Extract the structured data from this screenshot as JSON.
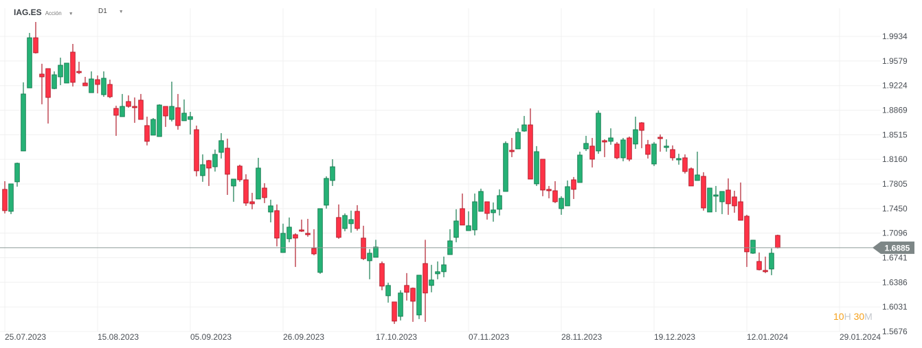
{
  "header": {
    "symbol": "IAG.ES",
    "instrument_type": "Acción",
    "timeframe": "D1",
    "caret_icon": "chevron-down-icon"
  },
  "timer": {
    "hours": "10",
    "hours_unit": "H",
    "minutes": "30",
    "minutes_unit": "M"
  },
  "colors": {
    "up": "#26b276",
    "up_border": "#137a4e",
    "down": "#ff3347",
    "down_border": "#b01c2a",
    "price_line": "#8c9a96",
    "price_tag": "#7d8686",
    "timer_digits": "#f5a11c"
  },
  "chart_data": {
    "type": "candlestick",
    "symbol": "IAG.ES",
    "timeframe": "D1",
    "current_price": "1.6885",
    "current_price_value": 1.6885,
    "ylim": [
      1.5676,
      1.9934
    ],
    "y_ticks": [
      "1.9934",
      "1.9579",
      "1.9224",
      "1.8869",
      "1.8515",
      "1.8160",
      "1.7805",
      "1.7450",
      "1.7096",
      "1.6741",
      "1.6386",
      "1.6031",
      "1.5676"
    ],
    "x_ticks": [
      {
        "label": "25.07.2023",
        "index": 0
      },
      {
        "label": "15.08.2023",
        "index": 15
      },
      {
        "label": "05.09.2023",
        "index": 30
      },
      {
        "label": "26.09.2023",
        "index": 45
      },
      {
        "label": "17.10.2023",
        "index": 60
      },
      {
        "label": "07.11.2023",
        "index": 75
      },
      {
        "label": "28.11.2023",
        "index": 90
      },
      {
        "label": "19.12.2023",
        "index": 105
      },
      {
        "label": "12.01.2024",
        "index": 120
      },
      {
        "label": "29.01.2024",
        "index": 135
      }
    ],
    "grid": true,
    "ohlc_columns": [
      "open",
      "high",
      "low",
      "close"
    ],
    "candles": [
      [
        1.7727,
        1.7845,
        1.738,
        1.742
      ],
      [
        1.741,
        1.7806,
        1.737,
        1.7806
      ],
      [
        1.7836,
        1.8113,
        1.7766,
        1.8103
      ],
      [
        1.8281,
        1.9271,
        1.8281,
        1.9103
      ],
      [
        1.9191,
        1.9984,
        1.9191,
        1.9914
      ],
      [
        1.9914,
        2.0142,
        1.9687,
        1.9697
      ],
      [
        1.939,
        1.9539,
        1.8954,
        1.935
      ],
      [
        1.9469,
        1.9469,
        1.8677,
        1.9053
      ],
      [
        1.9181,
        1.9429,
        1.9172,
        1.938
      ],
      [
        1.935,
        1.9627,
        1.9231,
        1.9518
      ],
      [
        1.9261,
        1.9548,
        1.9261,
        1.9548
      ],
      [
        1.9707,
        1.9825,
        1.9211,
        1.9271
      ],
      [
        1.9429,
        1.9568,
        1.939,
        1.941
      ],
      [
        1.9261,
        1.935,
        1.9221,
        1.9221
      ],
      [
        1.9122,
        1.9429,
        1.9122,
        1.932
      ],
      [
        1.931,
        1.937,
        1.9112,
        1.9241
      ],
      [
        1.9093,
        1.9429,
        1.9063,
        1.933
      ],
      [
        1.9241,
        1.931,
        1.9043,
        1.9063
      ],
      [
        1.8895,
        1.8934,
        1.8499,
        1.8796
      ],
      [
        1.8776,
        1.9103,
        1.8776,
        1.8924
      ],
      [
        1.8994,
        1.9083,
        1.8905,
        1.8924
      ],
      [
        1.8924,
        1.9053,
        1.8687,
        1.8905
      ],
      [
        1.9014,
        1.9103,
        1.8736,
        1.8736
      ],
      [
        1.8647,
        1.8776,
        1.8361,
        1.842
      ],
      [
        1.8509,
        1.8756,
        1.8509,
        1.8736
      ],
      [
        1.8489,
        1.8954,
        1.8489,
        1.8944
      ],
      [
        1.8924,
        1.8924,
        1.8628,
        1.8786
      ],
      [
        1.8736,
        1.9281,
        1.8707,
        1.8924
      ],
      [
        1.8905,
        1.9103,
        1.8588,
        1.8647
      ],
      [
        1.8717,
        1.9024,
        1.8717,
        1.8826
      ],
      [
        1.8736,
        1.8845,
        1.8519,
        1.8776
      ],
      [
        1.8588,
        1.8647,
        1.7915,
        1.7994
      ],
      [
        1.7925,
        1.8232,
        1.7836,
        1.8083
      ],
      [
        1.8142,
        1.8152,
        1.7776,
        1.8034
      ],
      [
        1.8053,
        1.8301,
        1.7984,
        1.8232
      ],
      [
        1.8261,
        1.8538,
        1.8172,
        1.843
      ],
      [
        1.8321,
        1.8459,
        1.7647,
        1.7945
      ],
      [
        1.7776,
        1.7875,
        1.7548,
        1.7875
      ],
      [
        1.8063,
        1.8083,
        1.7836,
        1.7865
      ],
      [
        1.7865,
        1.7945,
        1.7489,
        1.7529
      ],
      [
        1.7548,
        1.7677,
        1.744,
        1.7519
      ],
      [
        1.7588,
        1.8182,
        1.7588,
        1.8034
      ],
      [
        1.7746,
        1.7816,
        1.7529,
        1.7608
      ],
      [
        1.74,
        1.7578,
        1.7251,
        1.7489
      ],
      [
        1.742,
        1.7509,
        1.6905,
        1.7024
      ],
      [
        1.6816,
        1.7232,
        1.6816,
        1.7093
      ],
      [
        1.7014,
        1.7321,
        1.6964,
        1.7182
      ],
      [
        1.7073,
        1.7093,
        1.6608,
        1.7024
      ],
      [
        1.7142,
        1.7291,
        1.7113,
        1.7123
      ],
      [
        1.7093,
        1.7301,
        1.7044,
        1.7073
      ],
      [
        1.6875,
        1.7152,
        1.6776,
        1.6796
      ],
      [
        1.6529,
        1.7449,
        1.6509,
        1.7449
      ],
      [
        1.7499,
        1.7915,
        1.7449,
        1.7885
      ],
      [
        1.7855,
        1.8162,
        1.7776,
        1.8053
      ],
      [
        1.7321,
        1.7509,
        1.7014,
        1.7034
      ],
      [
        1.7162,
        1.738,
        1.7123,
        1.735
      ],
      [
        1.7232,
        1.742,
        1.7103,
        1.7291
      ],
      [
        1.741,
        1.7499,
        1.7132,
        1.7162
      ],
      [
        1.7024,
        1.7202,
        1.6707,
        1.6727
      ],
      [
        1.6697,
        1.6865,
        1.643,
        1.6806
      ],
      [
        1.6747,
        1.6999,
        1.6747,
        1.6895
      ],
      [
        1.6657,
        1.6687,
        1.6271,
        1.6331
      ],
      [
        1.6192,
        1.638,
        1.6093,
        1.6341
      ],
      [
        1.6103,
        1.6103,
        1.5786,
        1.5826
      ],
      [
        1.5895,
        1.6271,
        1.5836,
        1.6232
      ],
      [
        1.6341,
        1.6519,
        1.6123,
        1.6242
      ],
      [
        1.6301,
        1.6311,
        1.5816,
        1.6113
      ],
      [
        1.5915,
        1.6489,
        1.5856,
        1.6489
      ],
      [
        1.6657,
        1.6999,
        1.5816,
        1.6232
      ],
      [
        1.6341,
        1.6638,
        1.6242,
        1.642
      ],
      [
        1.6509,
        1.6687,
        1.643,
        1.6539
      ],
      [
        1.6539,
        1.6757,
        1.6459,
        1.6638
      ],
      [
        1.6786,
        1.7152,
        1.6786,
        1.6984
      ],
      [
        1.7034,
        1.744,
        1.6964,
        1.7271
      ],
      [
        1.7449,
        1.7667,
        1.7212,
        1.7212
      ],
      [
        1.7132,
        1.741,
        1.7132,
        1.7202
      ],
      [
        1.7142,
        1.7667,
        1.7063,
        1.7548
      ],
      [
        1.741,
        1.7737,
        1.741,
        1.7697
      ],
      [
        1.7548,
        1.7548,
        1.7291,
        1.738
      ],
      [
        1.739,
        1.7538,
        1.7261,
        1.743
      ],
      [
        1.744,
        1.7727,
        1.735,
        1.7637
      ],
      [
        1.7697,
        1.842,
        1.7697,
        1.839
      ],
      [
        1.8291,
        1.8469,
        1.8192,
        1.8271
      ],
      [
        1.8311,
        1.8608,
        1.8311,
        1.8549
      ],
      [
        1.8568,
        1.8786,
        1.8558,
        1.8657
      ],
      [
        1.8657,
        1.8895,
        1.7875,
        1.7875
      ],
      [
        1.7806,
        1.8351,
        1.7776,
        1.8271
      ],
      [
        1.8162,
        1.8162,
        1.7628,
        1.7717
      ],
      [
        1.7727,
        1.7776,
        1.7598,
        1.7707
      ],
      [
        1.7707,
        1.7845,
        1.7529,
        1.7548
      ],
      [
        1.7449,
        1.7628,
        1.736,
        1.7598
      ],
      [
        1.7489,
        1.7855,
        1.7489,
        1.7766
      ],
      [
        1.7865,
        1.7905,
        1.7588,
        1.7727
      ],
      [
        1.7826,
        1.8271,
        1.7826,
        1.8222
      ],
      [
        1.8311,
        1.8499,
        1.8281,
        1.839
      ],
      [
        1.8351,
        1.8469,
        1.8043,
        1.8162
      ],
      [
        1.8281,
        1.8865,
        1.8241,
        1.8826
      ],
      [
        1.843,
        1.8449,
        1.8192,
        1.841
      ],
      [
        1.842,
        1.8608,
        1.8371,
        1.8469
      ],
      [
        1.8381,
        1.841,
        1.8162,
        1.8182
      ],
      [
        1.8182,
        1.8469,
        1.8132,
        1.844
      ],
      [
        1.8469,
        1.8489,
        1.8132,
        1.8162
      ],
      [
        1.8381,
        1.8776,
        1.8311,
        1.8588
      ],
      [
        1.8687,
        1.8697,
        1.8321,
        1.8578
      ],
      [
        1.8371,
        1.844,
        1.8172,
        1.8232
      ],
      [
        1.8093,
        1.841,
        1.8063,
        1.8381
      ],
      [
        1.8479,
        1.8519,
        1.8271,
        1.8459
      ],
      [
        1.8331,
        1.8449,
        1.8271,
        1.8351
      ],
      [
        1.8301,
        1.8361,
        1.8142,
        1.8182
      ],
      [
        1.8152,
        1.8241,
        1.8083,
        1.8172
      ],
      [
        1.8182,
        1.8232,
        1.7955,
        1.7984
      ],
      [
        1.8024,
        1.8043,
        1.7776,
        1.7776
      ],
      [
        1.7855,
        1.8271,
        1.7855,
        1.7935
      ],
      [
        1.7915,
        1.7974,
        1.742,
        1.7459
      ],
      [
        1.74,
        1.7746,
        1.74,
        1.7746
      ],
      [
        1.7628,
        1.7776,
        1.74,
        1.7647
      ],
      [
        1.7548,
        1.7697,
        1.737,
        1.7697
      ],
      [
        1.7717,
        1.7885,
        1.736,
        1.7519
      ],
      [
        1.7618,
        1.7707,
        1.739,
        1.7489
      ],
      [
        1.7548,
        1.7826,
        1.7281,
        1.7281
      ],
      [
        1.734,
        1.736,
        1.6608,
        1.6826
      ],
      [
        1.6806,
        1.6999,
        1.6796,
        1.6994
      ],
      [
        1.6687,
        1.6816,
        1.6558,
        1.6568
      ],
      [
        1.6558,
        1.6757,
        1.6519,
        1.6539
      ],
      [
        1.6578,
        1.6875,
        1.6489,
        1.6806
      ],
      [
        1.7063,
        1.7073,
        1.6875,
        1.6885
      ]
    ]
  }
}
